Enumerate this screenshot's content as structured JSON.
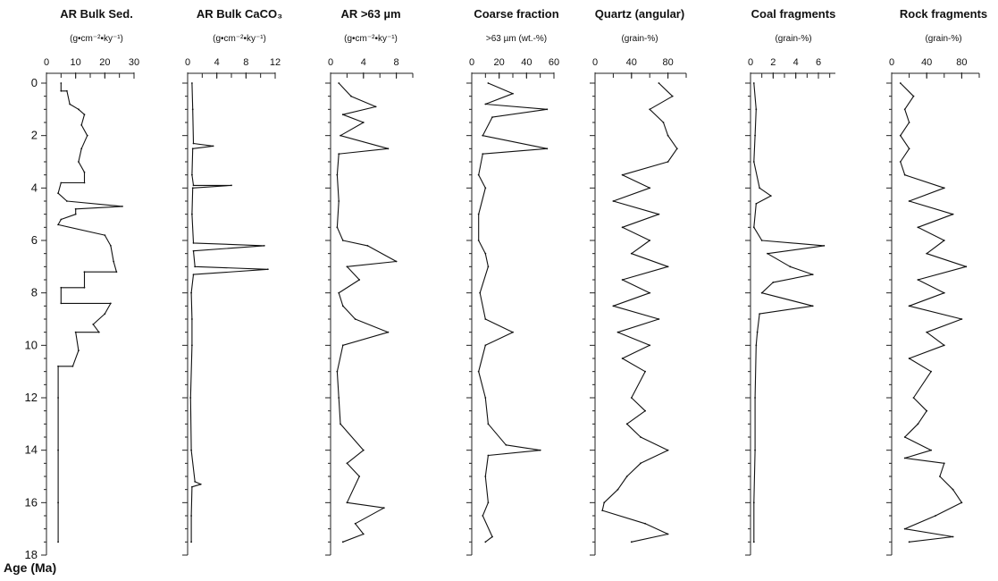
{
  "chart_data": {
    "type": "line",
    "y_label": "Age (Ma)",
    "y_range": [
      0,
      18
    ],
    "y_ticks": [
      0,
      2,
      4,
      6,
      8,
      10,
      12,
      14,
      16,
      18
    ],
    "panels": [
      {
        "title": "AR Bulk Sed.",
        "unit": "(g•cm⁻²•ky⁻¹)",
        "x_range": [
          0,
          30
        ],
        "x_ticks": [
          0,
          10,
          20,
          30
        ],
        "series": [
          {
            "age": 0.0,
            "value": 5
          },
          {
            "age": 0.3,
            "value": 5
          },
          {
            "age": 0.3,
            "value": 7
          },
          {
            "age": 0.8,
            "value": 8
          },
          {
            "age": 1.0,
            "value": 11
          },
          {
            "age": 1.2,
            "value": 13
          },
          {
            "age": 1.6,
            "value": 12
          },
          {
            "age": 2.0,
            "value": 14
          },
          {
            "age": 2.5,
            "value": 12
          },
          {
            "age": 3.0,
            "value": 11
          },
          {
            "age": 3.4,
            "value": 13
          },
          {
            "age": 3.8,
            "value": 13
          },
          {
            "age": 3.8,
            "value": 5
          },
          {
            "age": 4.2,
            "value": 4
          },
          {
            "age": 4.5,
            "value": 7
          },
          {
            "age": 4.7,
            "value": 26
          },
          {
            "age": 4.8,
            "value": 10
          },
          {
            "age": 5.0,
            "value": 10
          },
          {
            "age": 5.2,
            "value": 5
          },
          {
            "age": 5.4,
            "value": 4
          },
          {
            "age": 5.8,
            "value": 20
          },
          {
            "age": 6.2,
            "value": 22
          },
          {
            "age": 6.8,
            "value": 23
          },
          {
            "age": 7.2,
            "value": 24
          },
          {
            "age": 7.2,
            "value": 13
          },
          {
            "age": 7.8,
            "value": 13
          },
          {
            "age": 7.8,
            "value": 5
          },
          {
            "age": 8.4,
            "value": 5
          },
          {
            "age": 8.4,
            "value": 22
          },
          {
            "age": 8.8,
            "value": 20
          },
          {
            "age": 9.2,
            "value": 16
          },
          {
            "age": 9.5,
            "value": 18
          },
          {
            "age": 9.5,
            "value": 10
          },
          {
            "age": 10.2,
            "value": 11
          },
          {
            "age": 10.8,
            "value": 9
          },
          {
            "age": 10.8,
            "value": 4
          },
          {
            "age": 12.0,
            "value": 4
          },
          {
            "age": 14.0,
            "value": 4
          },
          {
            "age": 16.0,
            "value": 4
          },
          {
            "age": 17.5,
            "value": 4
          }
        ]
      },
      {
        "title": "AR Bulk CaCO₃",
        "unit": "(g•cm⁻²•ky⁻¹)",
        "x_range": [
          0,
          12
        ],
        "x_ticks": [
          0,
          4,
          8,
          12
        ],
        "series": [
          {
            "age": 0.0,
            "value": 0.6
          },
          {
            "age": 1.0,
            "value": 0.7
          },
          {
            "age": 2.3,
            "value": 0.8
          },
          {
            "age": 2.4,
            "value": 3.5
          },
          {
            "age": 2.5,
            "value": 0.7
          },
          {
            "age": 3.5,
            "value": 0.6
          },
          {
            "age": 3.9,
            "value": 0.8
          },
          {
            "age": 3.9,
            "value": 6.0
          },
          {
            "age": 4.0,
            "value": 0.7
          },
          {
            "age": 5.0,
            "value": 0.6
          },
          {
            "age": 6.1,
            "value": 0.8
          },
          {
            "age": 6.2,
            "value": 10.5
          },
          {
            "age": 6.4,
            "value": 0.8
          },
          {
            "age": 7.0,
            "value": 1.0
          },
          {
            "age": 7.1,
            "value": 11.0
          },
          {
            "age": 7.3,
            "value": 0.8
          },
          {
            "age": 8.0,
            "value": 0.5
          },
          {
            "age": 9.0,
            "value": 0.6
          },
          {
            "age": 10.0,
            "value": 0.6
          },
          {
            "age": 12.0,
            "value": 0.4
          },
          {
            "age": 14.0,
            "value": 0.5
          },
          {
            "age": 15.2,
            "value": 1.0
          },
          {
            "age": 15.3,
            "value": 1.8
          },
          {
            "age": 15.4,
            "value": 0.6
          },
          {
            "age": 16.5,
            "value": 0.5
          },
          {
            "age": 17.5,
            "value": 0.5
          }
        ]
      },
      {
        "title": "AR >63 µm",
        "unit": "(g•cm⁻²•ky⁻¹)",
        "x_range": [
          0,
          10
        ],
        "x_ticks": [
          0,
          4,
          8
        ],
        "series": [
          {
            "age": 0.0,
            "value": 1.0
          },
          {
            "age": 0.5,
            "value": 2.5
          },
          {
            "age": 0.9,
            "value": 5.5
          },
          {
            "age": 1.2,
            "value": 1.5
          },
          {
            "age": 1.5,
            "value": 4.0
          },
          {
            "age": 2.0,
            "value": 1.2
          },
          {
            "age": 2.5,
            "value": 7.0
          },
          {
            "age": 2.7,
            "value": 1.0
          },
          {
            "age": 3.5,
            "value": 0.8
          },
          {
            "age": 4.5,
            "value": 1.0
          },
          {
            "age": 5.5,
            "value": 0.8
          },
          {
            "age": 6.0,
            "value": 1.5
          },
          {
            "age": 6.2,
            "value": 4.5
          },
          {
            "age": 6.8,
            "value": 8.0
          },
          {
            "age": 7.0,
            "value": 2.0
          },
          {
            "age": 7.5,
            "value": 3.5
          },
          {
            "age": 8.0,
            "value": 1.0
          },
          {
            "age": 8.5,
            "value": 1.5
          },
          {
            "age": 9.0,
            "value": 3.0
          },
          {
            "age": 9.5,
            "value": 7.0
          },
          {
            "age": 10.0,
            "value": 1.5
          },
          {
            "age": 11.0,
            "value": 0.8
          },
          {
            "age": 12.0,
            "value": 1.0
          },
          {
            "age": 13.0,
            "value": 1.2
          },
          {
            "age": 14.0,
            "value": 4.0
          },
          {
            "age": 14.5,
            "value": 2.0
          },
          {
            "age": 15.0,
            "value": 3.5
          },
          {
            "age": 16.0,
            "value": 2.0
          },
          {
            "age": 16.2,
            "value": 6.5
          },
          {
            "age": 16.8,
            "value": 3.0
          },
          {
            "age": 17.2,
            "value": 4.0
          },
          {
            "age": 17.5,
            "value": 1.5
          }
        ]
      },
      {
        "title": "Coarse fraction",
        "unit": ">63 µm (wt.-%)",
        "x_range": [
          0,
          60
        ],
        "x_ticks": [
          0,
          20,
          40,
          60
        ],
        "series": [
          {
            "age": 0.0,
            "value": 12
          },
          {
            "age": 0.4,
            "value": 30
          },
          {
            "age": 0.8,
            "value": 10
          },
          {
            "age": 1.0,
            "value": 55
          },
          {
            "age": 1.3,
            "value": 15
          },
          {
            "age": 2.0,
            "value": 8
          },
          {
            "age": 2.5,
            "value": 55
          },
          {
            "age": 2.7,
            "value": 8
          },
          {
            "age": 3.5,
            "value": 5
          },
          {
            "age": 4.0,
            "value": 10
          },
          {
            "age": 5.0,
            "value": 5
          },
          {
            "age": 6.0,
            "value": 5
          },
          {
            "age": 6.5,
            "value": 10
          },
          {
            "age": 7.0,
            "value": 12
          },
          {
            "age": 8.0,
            "value": 6
          },
          {
            "age": 9.0,
            "value": 10
          },
          {
            "age": 9.5,
            "value": 30
          },
          {
            "age": 10.0,
            "value": 10
          },
          {
            "age": 11.0,
            "value": 5
          },
          {
            "age": 12.0,
            "value": 10
          },
          {
            "age": 13.0,
            "value": 12
          },
          {
            "age": 13.8,
            "value": 25
          },
          {
            "age": 14.0,
            "value": 50
          },
          {
            "age": 14.2,
            "value": 12
          },
          {
            "age": 15.0,
            "value": 10
          },
          {
            "age": 16.0,
            "value": 12
          },
          {
            "age": 16.5,
            "value": 8
          },
          {
            "age": 17.3,
            "value": 15
          },
          {
            "age": 17.5,
            "value": 10
          }
        ]
      },
      {
        "title": "Quartz (angular)",
        "unit": "(grain-%)",
        "x_range": [
          0,
          100
        ],
        "x_ticks": [
          0,
          40,
          80
        ],
        "series": [
          {
            "age": 0.0,
            "value": 70
          },
          {
            "age": 0.5,
            "value": 85
          },
          {
            "age": 1.0,
            "value": 60
          },
          {
            "age": 1.5,
            "value": 75
          },
          {
            "age": 2.0,
            "value": 80
          },
          {
            "age": 2.5,
            "value": 90
          },
          {
            "age": 3.0,
            "value": 80
          },
          {
            "age": 3.5,
            "value": 30
          },
          {
            "age": 4.0,
            "value": 60
          },
          {
            "age": 4.5,
            "value": 20
          },
          {
            "age": 5.0,
            "value": 70
          },
          {
            "age": 5.5,
            "value": 30
          },
          {
            "age": 6.0,
            "value": 60
          },
          {
            "age": 6.5,
            "value": 40
          },
          {
            "age": 7.0,
            "value": 80
          },
          {
            "age": 7.5,
            "value": 30
          },
          {
            "age": 8.0,
            "value": 60
          },
          {
            "age": 8.5,
            "value": 20
          },
          {
            "age": 9.0,
            "value": 70
          },
          {
            "age": 9.5,
            "value": 25
          },
          {
            "age": 10.0,
            "value": 60
          },
          {
            "age": 10.5,
            "value": 30
          },
          {
            "age": 11.0,
            "value": 55
          },
          {
            "age": 12.0,
            "value": 40
          },
          {
            "age": 12.5,
            "value": 55
          },
          {
            "age": 13.0,
            "value": 35
          },
          {
            "age": 13.5,
            "value": 50
          },
          {
            "age": 14.0,
            "value": 80
          },
          {
            "age": 14.5,
            "value": 50
          },
          {
            "age": 15.0,
            "value": 35
          },
          {
            "age": 15.5,
            "value": 25
          },
          {
            "age": 16.0,
            "value": 10
          },
          {
            "age": 16.3,
            "value": 8
          },
          {
            "age": 16.8,
            "value": 55
          },
          {
            "age": 17.2,
            "value": 80
          },
          {
            "age": 17.5,
            "value": 40
          }
        ]
      },
      {
        "title": "Coal fragments",
        "unit": "(grain-%)",
        "x_range": [
          0,
          7.5
        ],
        "x_ticks": [
          0,
          2,
          4,
          6
        ],
        "series": [
          {
            "age": 0.0,
            "value": 0.3
          },
          {
            "age": 1.0,
            "value": 0.5
          },
          {
            "age": 2.0,
            "value": 0.4
          },
          {
            "age": 3.0,
            "value": 0.3
          },
          {
            "age": 4.0,
            "value": 0.8
          },
          {
            "age": 4.3,
            "value": 1.8
          },
          {
            "age": 4.6,
            "value": 0.5
          },
          {
            "age": 5.5,
            "value": 0.3
          },
          {
            "age": 6.0,
            "value": 1.0
          },
          {
            "age": 6.2,
            "value": 6.5
          },
          {
            "age": 6.5,
            "value": 1.5
          },
          {
            "age": 7.0,
            "value": 3.5
          },
          {
            "age": 7.3,
            "value": 5.5
          },
          {
            "age": 7.6,
            "value": 2.0
          },
          {
            "age": 8.0,
            "value": 1.0
          },
          {
            "age": 8.5,
            "value": 5.5
          },
          {
            "age": 8.8,
            "value": 0.8
          },
          {
            "age": 9.5,
            "value": 0.6
          },
          {
            "age": 10.0,
            "value": 0.5
          },
          {
            "age": 12.0,
            "value": 0.4
          },
          {
            "age": 14.0,
            "value": 0.4
          },
          {
            "age": 16.0,
            "value": 0.3
          },
          {
            "age": 17.5,
            "value": 0.3
          }
        ]
      },
      {
        "title": "Rock fragments",
        "unit": "(grain-%)",
        "x_range": [
          0,
          100
        ],
        "x_ticks": [
          0,
          40,
          80
        ],
        "series": [
          {
            "age": 0.0,
            "value": 10
          },
          {
            "age": 0.5,
            "value": 25
          },
          {
            "age": 1.0,
            "value": 15
          },
          {
            "age": 1.5,
            "value": 20
          },
          {
            "age": 2.0,
            "value": 10
          },
          {
            "age": 2.5,
            "value": 20
          },
          {
            "age": 3.0,
            "value": 10
          },
          {
            "age": 3.5,
            "value": 15
          },
          {
            "age": 4.0,
            "value": 60
          },
          {
            "age": 4.5,
            "value": 20
          },
          {
            "age": 5.0,
            "value": 70
          },
          {
            "age": 5.5,
            "value": 30
          },
          {
            "age": 6.0,
            "value": 60
          },
          {
            "age": 6.5,
            "value": 40
          },
          {
            "age": 7.0,
            "value": 85
          },
          {
            "age": 7.5,
            "value": 30
          },
          {
            "age": 8.0,
            "value": 60
          },
          {
            "age": 8.5,
            "value": 20
          },
          {
            "age": 9.0,
            "value": 80
          },
          {
            "age": 9.5,
            "value": 40
          },
          {
            "age": 10.0,
            "value": 60
          },
          {
            "age": 10.5,
            "value": 20
          },
          {
            "age": 11.0,
            "value": 45
          },
          {
            "age": 12.0,
            "value": 25
          },
          {
            "age": 12.5,
            "value": 40
          },
          {
            "age": 13.0,
            "value": 30
          },
          {
            "age": 13.5,
            "value": 15
          },
          {
            "age": 14.0,
            "value": 45
          },
          {
            "age": 14.3,
            "value": 15
          },
          {
            "age": 14.5,
            "value": 60
          },
          {
            "age": 15.0,
            "value": 55
          },
          {
            "age": 15.5,
            "value": 70
          },
          {
            "age": 16.0,
            "value": 80
          },
          {
            "age": 16.5,
            "value": 50
          },
          {
            "age": 17.0,
            "value": 15
          },
          {
            "age": 17.3,
            "value": 70
          },
          {
            "age": 17.5,
            "value": 20
          }
        ]
      }
    ]
  }
}
